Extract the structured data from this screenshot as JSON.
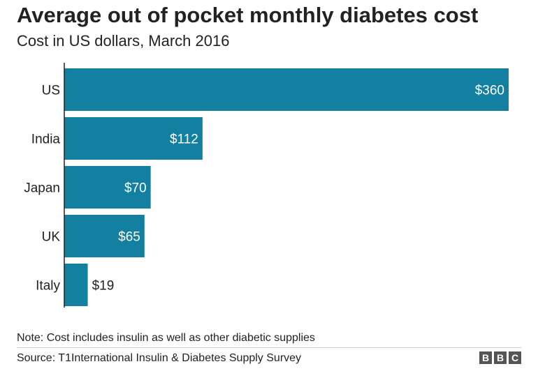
{
  "chart_data": {
    "type": "bar",
    "orientation": "horizontal",
    "title": "Average out of pocket monthly diabetes cost",
    "subtitle": "Cost in US dollars, March 2016",
    "categories": [
      "US",
      "India",
      "Japan",
      "UK",
      "Italy"
    ],
    "values": [
      360,
      112,
      70,
      65,
      19
    ],
    "value_labels": [
      "$360",
      "$112",
      "$70",
      "$65",
      "$19"
    ],
    "xlim": [
      0,
      360
    ],
    "grid": false,
    "bar_color": "#1380a1"
  },
  "note": "Note: Cost includes insulin as well as other diabetic supplies",
  "source": "Source: T1International Insulin & Diabetes Supply Survey",
  "logo": {
    "letters": [
      "B",
      "B",
      "C"
    ],
    "icon": "bbc-logo"
  }
}
